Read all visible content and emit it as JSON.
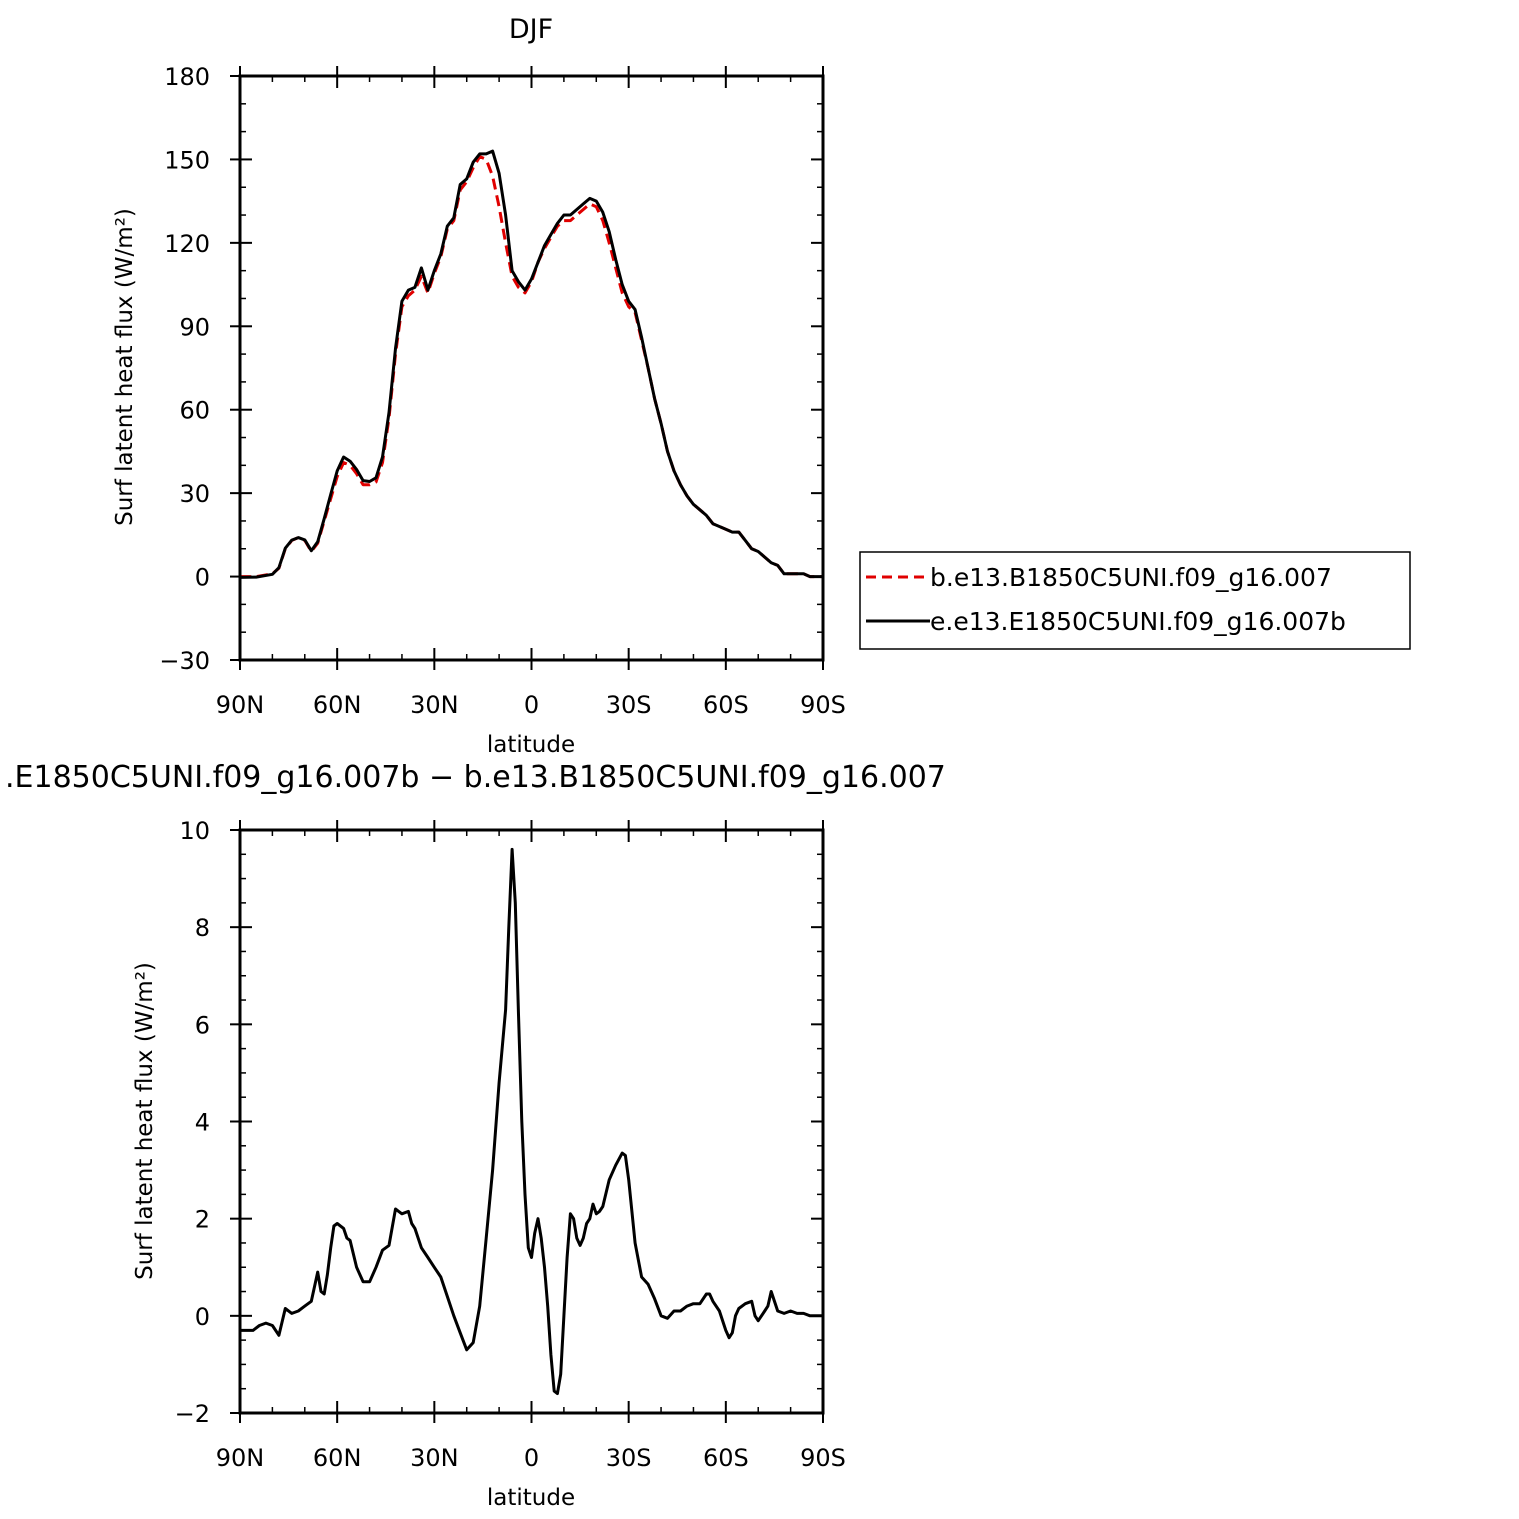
{
  "chart_data": [
    {
      "type": "line",
      "title": "DJF",
      "xlabel": "latitude",
      "ylabel": "Surf latent heat flux (W/m²)",
      "xlim": [
        90,
        -90
      ],
      "ylim": [
        -30,
        180
      ],
      "yticks": [
        -30,
        0,
        30,
        60,
        90,
        120,
        150,
        180
      ],
      "ytick_labels": [
        "−30",
        "0",
        "30",
        "60",
        "90",
        "120",
        "150",
        "180"
      ],
      "xticks": [
        90,
        60,
        30,
        0,
        -30,
        -60,
        -90
      ],
      "xtick_labels": [
        "90N",
        "60N",
        "30N",
        "0",
        "30S",
        "60S",
        "90S"
      ],
      "grid": false,
      "legend_position": "right",
      "series": [
        {
          "name": "b.e13.B1850C5UNI.f09_g16.007",
          "color": "#e00000",
          "dash": "dashed",
          "x": [
            90,
            85,
            80,
            78,
            76,
            74,
            72,
            70,
            68,
            66,
            64,
            62,
            60,
            58,
            56,
            54,
            52,
            50,
            48,
            46,
            44,
            42,
            40,
            38,
            36,
            34,
            32,
            30,
            28,
            26,
            24,
            22,
            20,
            18,
            16,
            14,
            12,
            10,
            8,
            6,
            4,
            2,
            0,
            -2,
            -4,
            -6,
            -8,
            -10,
            -12,
            -14,
            -16,
            -18,
            -20,
            -22,
            -24,
            -26,
            -28,
            -30,
            -32,
            -34,
            -36,
            -38,
            -40,
            -42,
            -44,
            -46,
            -48,
            -50,
            -52,
            -54,
            -56,
            -58,
            -60,
            -62,
            -64,
            -66,
            -68,
            -70,
            -72,
            -74,
            -76,
            -78,
            -80,
            -82,
            -84,
            -86,
            -88,
            -90
          ],
          "y": [
            0,
            0,
            1,
            3,
            10,
            13,
            14,
            13,
            9,
            12,
            20,
            28,
            36,
            41,
            40,
            37,
            33,
            33,
            34,
            41,
            57,
            80,
            97,
            101,
            103,
            108,
            102,
            109,
            115,
            125,
            128,
            139,
            142,
            147,
            151,
            150,
            144,
            133,
            120,
            108,
            104,
            102,
            106,
            113,
            118,
            122,
            126,
            128,
            128,
            130,
            132,
            134,
            133,
            128,
            120,
            111,
            102,
            97,
            95,
            85,
            75,
            64,
            55,
            45,
            38,
            33,
            29,
            26,
            24,
            22,
            19,
            18,
            17,
            16,
            16,
            13,
            10,
            9,
            7,
            5,
            4,
            1,
            1,
            1,
            1,
            0,
            0,
            0
          ]
        },
        {
          "name": "e.e13.E1850C5UNI.f09_g16.007b",
          "color": "#000000",
          "dash": "solid",
          "x": [
            90,
            85,
            80,
            78,
            76,
            74,
            72,
            70,
            68,
            66,
            64,
            62,
            60,
            58,
            56,
            54,
            52,
            50,
            48,
            46,
            44,
            42,
            40,
            38,
            36,
            34,
            32,
            30,
            28,
            26,
            24,
            22,
            20,
            18,
            16,
            14,
            12,
            10,
            8,
            6,
            4,
            2,
            0,
            -2,
            -4,
            -6,
            -8,
            -10,
            -12,
            -14,
            -16,
            -18,
            -20,
            -22,
            -24,
            -26,
            -28,
            -30,
            -32,
            -34,
            -36,
            -38,
            -40,
            -42,
            -44,
            -46,
            -48,
            -50,
            -52,
            -54,
            -56,
            -58,
            -60,
            -62,
            -64,
            -66,
            -68,
            -70,
            -72,
            -74,
            -76,
            -78,
            -80,
            -82,
            -84,
            -86,
            -88,
            -90
          ],
          "y": [
            -0.3,
            -0.2,
            0.8,
            3.2,
            10.2,
            13.1,
            14,
            13.2,
            9.3,
            12.5,
            20.8,
            29.5,
            38,
            43,
            41.5,
            38.5,
            34.5,
            34.2,
            35.5,
            43,
            59,
            82,
            99,
            103,
            104,
            111,
            103,
            110,
            116,
            126,
            129,
            141,
            143,
            149,
            152,
            152,
            153,
            145,
            130,
            110,
            106,
            103,
            107,
            113,
            119,
            123,
            127,
            130,
            130,
            132,
            134,
            136,
            135,
            131,
            124,
            114,
            105,
            99,
            96,
            86,
            75,
            64,
            55,
            45,
            38,
            33,
            29,
            26,
            24,
            22,
            19,
            18,
            17,
            16,
            16,
            13,
            10,
            9,
            7,
            5,
            4,
            1,
            1,
            1,
            1,
            0,
            0,
            0
          ]
        }
      ]
    },
    {
      "type": "line",
      "title": ".E1850C5UNI.f09_g16.007b − b.e13.B1850C5UNI.f09_g16.007",
      "xlabel": "latitude",
      "ylabel": "Surf latent heat flux (W/m²)",
      "xlim": [
        90,
        -90
      ],
      "ylim": [
        -2,
        10
      ],
      "yticks": [
        -2,
        0,
        2,
        4,
        6,
        8,
        10
      ],
      "ytick_labels": [
        "−2",
        "0",
        "2",
        "4",
        "6",
        "8",
        "10"
      ],
      "xticks": [
        90,
        60,
        30,
        0,
        -30,
        -60,
        -90
      ],
      "xtick_labels": [
        "90N",
        "60N",
        "30N",
        "0",
        "30S",
        "60S",
        "90S"
      ],
      "grid": false,
      "series": [
        {
          "color": "#000000",
          "dash": "solid",
          "x": [
            90,
            86,
            84,
            82,
            80,
            78,
            76,
            74,
            72,
            70,
            68,
            66,
            65,
            64,
            63,
            62,
            61,
            60,
            58,
            57,
            56,
            54,
            52,
            50,
            48,
            46,
            44,
            42,
            41,
            40,
            38,
            37,
            36,
            34,
            32,
            30,
            28,
            26,
            24,
            22,
            20,
            18,
            16,
            14,
            12,
            10,
            8,
            7,
            6,
            5,
            4,
            3,
            2,
            1,
            0,
            -1,
            -2,
            -3,
            -4,
            -5,
            -6,
            -7,
            -8,
            -9,
            -10,
            -11,
            -12,
            -13,
            -14,
            -15,
            -16,
            -17,
            -18,
            -19,
            -20,
            -21,
            -22,
            -24,
            -26,
            -28,
            -29,
            -30,
            -32,
            -34,
            -36,
            -38,
            -40,
            -42,
            -44,
            -46,
            -48,
            -50,
            -52,
            -54,
            -55,
            -56,
            -58,
            -60,
            -61,
            -62,
            -63,
            -64,
            -66,
            -68,
            -69,
            -70,
            -72,
            -73,
            -74,
            -76,
            -78,
            -80,
            -82,
            -84,
            -86,
            -88,
            -90
          ],
          "y": [
            -0.3,
            -0.3,
            -0.2,
            -0.15,
            -0.2,
            -0.4,
            0.15,
            0.05,
            0.1,
            0.2,
            0.3,
            0.9,
            0.5,
            0.45,
            0.85,
            1.4,
            1.85,
            1.9,
            1.8,
            1.6,
            1.55,
            1.0,
            0.7,
            0.7,
            1.0,
            1.35,
            1.45,
            2.2,
            2.15,
            2.1,
            2.15,
            1.9,
            1.8,
            1.4,
            1.2,
            1.0,
            0.8,
            0.4,
            0.0,
            -0.35,
            -0.7,
            -0.55,
            0.2,
            1.6,
            3.0,
            4.8,
            6.3,
            8.0,
            9.6,
            8.5,
            6.2,
            4.0,
            2.5,
            1.4,
            1.2,
            1.7,
            2.0,
            1.6,
            1.0,
            0.2,
            -0.8,
            -1.55,
            -1.6,
            -1.2,
            0.0,
            1.2,
            2.1,
            2.0,
            1.6,
            1.45,
            1.6,
            1.9,
            2.0,
            2.3,
            2.1,
            2.15,
            2.25,
            2.8,
            3.1,
            3.35,
            3.3,
            2.8,
            1.5,
            0.8,
            0.65,
            0.35,
            0.0,
            -0.05,
            0.1,
            0.1,
            0.2,
            0.25,
            0.25,
            0.45,
            0.45,
            0.3,
            0.1,
            -0.3,
            -0.45,
            -0.35,
            0.0,
            0.15,
            0.25,
            0.3,
            0.0,
            -0.1,
            0.1,
            0.2,
            0.5,
            0.1,
            0.05,
            0.1,
            0.05,
            0.05,
            0.0,
            0.0,
            0.0
          ]
        }
      ]
    }
  ]
}
